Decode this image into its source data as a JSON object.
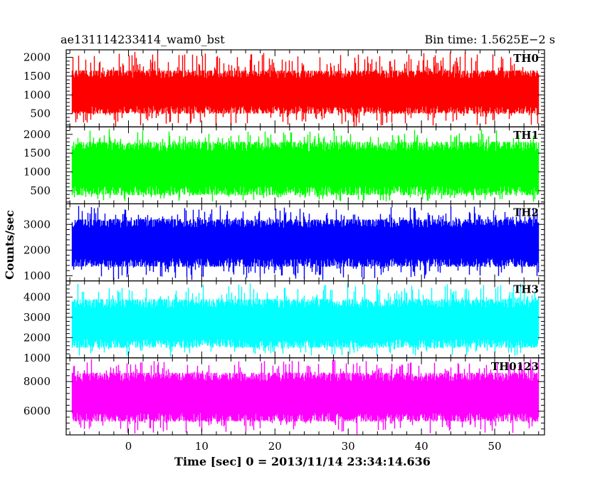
{
  "chart_data": {
    "type": "line",
    "title_left": "ae131114233414_wam0_bst",
    "title_right": "Bin time: 1.5625E−2 s",
    "xlabel": "Time [sec] 0 = 2013/11/14 23:34:14.636",
    "ylabel": "Counts/sec",
    "xlim": [
      -8.5,
      56.8
    ],
    "x_range_data": [
      -7.8,
      56.0
    ],
    "bin_time_s": 0.015625,
    "x_ticks": [
      0,
      10,
      20,
      30,
      40,
      50
    ],
    "grid": false,
    "panels": [
      {
        "name": "TH0",
        "color": "#ff0000",
        "ylim": [
          150,
          2200
        ],
        "y_ticks": [
          500,
          1000,
          1500,
          2000
        ],
        "typical_min": 500,
        "typical_max": 1650,
        "extreme_min": 130,
        "extreme_max": 2150
      },
      {
        "name": "TH1",
        "color": "#00ff00",
        "ylim": [
          150,
          2200
        ],
        "y_ticks": [
          500,
          1000,
          1500,
          2000
        ],
        "typical_min": 380,
        "typical_max": 1800,
        "extreme_min": 180,
        "extreme_max": 2150
      },
      {
        "name": "TH2",
        "color": "#0000ff",
        "ylim": [
          800,
          3800
        ],
        "y_ticks": [
          1000,
          2000,
          3000
        ],
        "typical_min": 1350,
        "typical_max": 3200,
        "extreme_min": 800,
        "extreme_max": 3750
      },
      {
        "name": "TH3",
        "color": "#00ffff",
        "ylim": [
          1000,
          4800
        ],
        "y_ticks": [
          1000,
          2000,
          3000,
          4000
        ],
        "typical_min": 1500,
        "typical_max": 3900,
        "extreme_min": 1050,
        "extreme_max": 4700
      },
      {
        "name": "TH0123",
        "color": "#ff00ff",
        "ylim": [
          4400,
          9600
        ],
        "y_ticks": [
          6000,
          8000
        ],
        "typical_min": 5300,
        "typical_max": 8600,
        "extreme_min": 4400,
        "extreme_max": 9550
      }
    ]
  }
}
